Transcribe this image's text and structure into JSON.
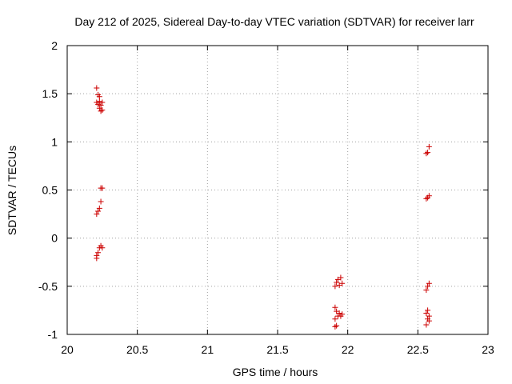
{
  "chart_data": {
    "type": "scatter",
    "title": "Day 212 of 2025, Sidereal Day-to-day VTEC variation (SDTVAR) for receiver larr",
    "xlabel": "GPS time / hours",
    "ylabel": "SDTVAR / TECUs",
    "xlim": [
      20,
      23
    ],
    "ylim": [
      -1,
      2
    ],
    "xticks": [
      20,
      20.5,
      21,
      21.5,
      22,
      22.5,
      23
    ],
    "xtick_labels": [
      "20",
      "20.5",
      "21",
      "21.5",
      "22",
      "22.5",
      "23"
    ],
    "yticks": [
      -1,
      -0.5,
      0,
      0.5,
      1,
      1.5,
      2
    ],
    "ytick_labels": [
      "-1",
      "-0.5",
      "0",
      "0.5",
      "1",
      "1.5",
      "2"
    ],
    "grid": true,
    "marker": "+",
    "color": "#cc0000",
    "series": [
      {
        "name": "SDTVAR",
        "points": [
          [
            20.21,
            1.56
          ],
          [
            20.22,
            1.49
          ],
          [
            20.23,
            1.47
          ],
          [
            20.21,
            1.41
          ],
          [
            20.22,
            1.39
          ],
          [
            20.23,
            1.42
          ],
          [
            20.24,
            1.38
          ],
          [
            20.25,
            1.41
          ],
          [
            20.23,
            1.35
          ],
          [
            20.24,
            1.32
          ],
          [
            20.25,
            1.33
          ],
          [
            20.24,
            0.52
          ],
          [
            20.25,
            0.52
          ],
          [
            20.24,
            0.38
          ],
          [
            20.23,
            0.31
          ],
          [
            20.22,
            0.28
          ],
          [
            20.21,
            0.25
          ],
          [
            20.24,
            -0.08
          ],
          [
            20.25,
            -0.1
          ],
          [
            20.23,
            -0.1
          ],
          [
            20.22,
            -0.15
          ],
          [
            20.21,
            -0.18
          ],
          [
            20.21,
            -0.21
          ],
          [
            21.95,
            -0.41
          ],
          [
            21.93,
            -0.43
          ],
          [
            21.92,
            -0.46
          ],
          [
            21.96,
            -0.47
          ],
          [
            21.94,
            -0.49
          ],
          [
            21.91,
            -0.5
          ],
          [
            21.91,
            -0.72
          ],
          [
            21.92,
            -0.76
          ],
          [
            21.94,
            -0.78
          ],
          [
            21.96,
            -0.79
          ],
          [
            21.95,
            -0.81
          ],
          [
            21.93,
            -0.81
          ],
          [
            21.91,
            -0.84
          ],
          [
            21.92,
            -0.91
          ],
          [
            21.91,
            -0.92
          ],
          [
            22.58,
            0.95
          ],
          [
            22.57,
            0.89
          ],
          [
            22.56,
            0.88
          ],
          [
            22.58,
            0.44
          ],
          [
            22.57,
            0.42
          ],
          [
            22.56,
            0.41
          ],
          [
            22.58,
            -0.47
          ],
          [
            22.57,
            -0.5
          ],
          [
            22.56,
            -0.54
          ],
          [
            22.57,
            -0.75
          ],
          [
            22.56,
            -0.78
          ],
          [
            22.58,
            -0.81
          ],
          [
            22.57,
            -0.84
          ],
          [
            22.58,
            -0.86
          ],
          [
            22.56,
            -0.9
          ]
        ]
      }
    ]
  }
}
